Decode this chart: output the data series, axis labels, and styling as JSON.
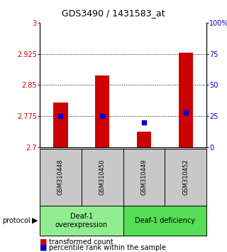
{
  "title": "GDS3490 / 1431583_at",
  "samples": [
    "GSM310448",
    "GSM310450",
    "GSM310449",
    "GSM310452"
  ],
  "bar_values": [
    2.808,
    2.873,
    2.737,
    2.928
  ],
  "percentile_values": [
    25,
    25,
    20,
    28
  ],
  "ylim": [
    2.7,
    3.0
  ],
  "yticks_left": [
    2.7,
    2.775,
    2.85,
    2.925,
    3.0
  ],
  "yticks_right": [
    0,
    25,
    50,
    75,
    100
  ],
  "ytick_labels_left": [
    "2.7",
    "2.775",
    "2.85",
    "2.925",
    "3"
  ],
  "ytick_labels_right": [
    "0",
    "25",
    "50",
    "75",
    "100%"
  ],
  "grid_yticks": [
    2.775,
    2.85,
    2.925
  ],
  "bar_color": "#cc0000",
  "percentile_color": "#0000cc",
  "bar_width": 0.35,
  "protocol_groups": [
    {
      "label": "Deaf-1\noverexpression",
      "start": 0,
      "end": 2,
      "color": "#90ee90"
    },
    {
      "label": "Deaf-1 deficiency",
      "start": 2,
      "end": 4,
      "color": "#55dd55"
    }
  ],
  "protocol_label": "protocol",
  "legend_bar_label": "transformed count",
  "legend_pct_label": "percentile rank within the sample",
  "background_color": "#ffffff",
  "sample_bg_color": "#c8c8c8",
  "title_fontsize": 9,
  "tick_fontsize": 7,
  "sample_fontsize": 6,
  "protocol_fontsize": 7,
  "legend_fontsize": 7
}
